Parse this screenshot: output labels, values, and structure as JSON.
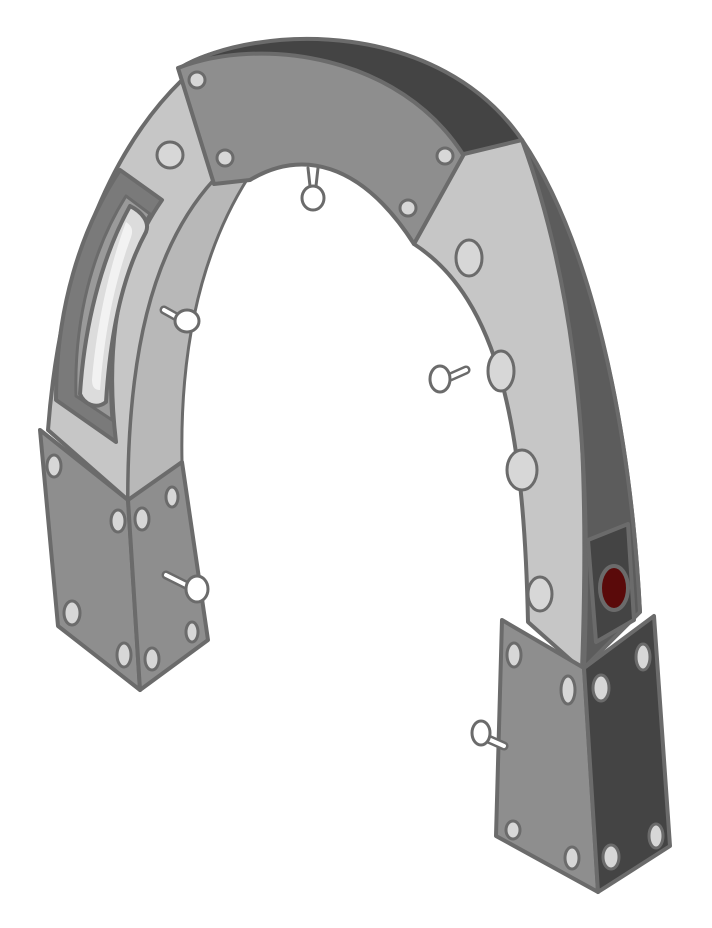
{
  "image": {
    "subject": "horseshoe-arch",
    "background": "#ffffff"
  },
  "colors": {
    "outline": "#6b6b6b",
    "face_light": "#c6c6c6",
    "face_mid": "#8e8e8e",
    "face_dark": "#5c5c5c",
    "face_darkest": "#444444",
    "window_glass": "#dcdcdc",
    "indicator_red": "#5a0a0a",
    "rivet": "#d7d7d7"
  },
  "icons": [
    "rivet-icon",
    "hook-icon",
    "indicator-light-icon",
    "window-slot-icon"
  ]
}
